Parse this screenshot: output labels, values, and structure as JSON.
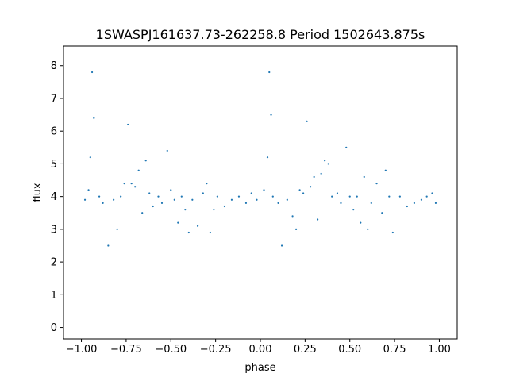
{
  "chart_data": {
    "type": "scatter",
    "title": "1SWASPJ161637.73-262258.8 Period 1502643.875s",
    "xlabel": "phase",
    "ylabel": "flux",
    "xlim": [
      -1.1,
      1.1
    ],
    "ylim": [
      -0.35,
      8.6
    ],
    "xticks": [
      -1.0,
      -0.75,
      -0.5,
      -0.25,
      0.0,
      0.25,
      0.5,
      0.75,
      1.0
    ],
    "xtick_labels": [
      "−1.00",
      "−0.75",
      "−0.50",
      "−0.25",
      "0.00",
      "0.25",
      "0.50",
      "0.75",
      "1.00"
    ],
    "yticks": [
      0,
      1,
      2,
      3,
      4,
      5,
      6,
      7,
      8
    ],
    "ytick_labels": [
      "0",
      "1",
      "2",
      "3",
      "4",
      "5",
      "6",
      "7",
      "8"
    ],
    "grid": false,
    "marker_color": "#1f77b4",
    "series": [
      {
        "x": [
          -0.98,
          -0.96,
          -0.95,
          -0.94,
          -0.93,
          -0.9,
          -0.88,
          -0.85,
          -0.82,
          -0.8,
          -0.78,
          -0.76,
          -0.74,
          -0.72,
          -0.7,
          -0.68,
          -0.66,
          -0.64,
          -0.62,
          -0.6,
          -0.57,
          -0.55,
          -0.52,
          -0.5,
          -0.48,
          -0.46,
          -0.44,
          -0.42,
          -0.4,
          -0.38,
          -0.35,
          -0.32,
          -0.3,
          -0.28,
          -0.26,
          -0.24,
          -0.2,
          -0.16,
          -0.12,
          -0.08,
          -0.05,
          -0.02,
          0.02,
          0.04,
          0.05,
          0.06,
          0.07,
          0.1,
          0.12,
          0.15,
          0.18,
          0.2,
          0.22,
          0.24,
          0.26,
          0.28,
          0.3,
          0.32,
          0.34,
          0.36,
          0.38,
          0.4,
          0.43,
          0.45,
          0.48,
          0.5,
          0.52,
          0.54,
          0.56,
          0.58,
          0.6,
          0.62,
          0.65,
          0.68,
          0.7,
          0.72,
          0.74,
          0.78,
          0.82,
          0.86,
          0.9,
          0.93,
          0.96,
          0.98
        ],
        "y": [
          3.9,
          4.2,
          5.2,
          7.8,
          6.4,
          4.0,
          3.8,
          2.5,
          3.9,
          3.0,
          4.0,
          4.4,
          6.2,
          4.4,
          4.3,
          4.8,
          3.5,
          5.1,
          4.1,
          3.7,
          4.0,
          3.8,
          5.4,
          4.2,
          3.9,
          3.2,
          4.0,
          3.6,
          2.9,
          3.9,
          3.1,
          4.1,
          4.4,
          2.9,
          3.6,
          4.0,
          3.7,
          3.9,
          4.0,
          3.8,
          4.1,
          3.9,
          4.2,
          5.2,
          7.8,
          6.5,
          4.0,
          3.8,
          2.5,
          3.9,
          3.4,
          3.0,
          4.2,
          4.1,
          6.3,
          4.3,
          4.6,
          3.3,
          4.7,
          5.1,
          5.0,
          4.0,
          4.1,
          3.8,
          5.5,
          4.0,
          3.6,
          4.0,
          3.2,
          4.6,
          3.0,
          3.8,
          4.4,
          3.5,
          4.8,
          4.0,
          2.9,
          4.0,
          3.7,
          3.8,
          3.9,
          4.0,
          4.1,
          3.8
        ]
      }
    ]
  }
}
